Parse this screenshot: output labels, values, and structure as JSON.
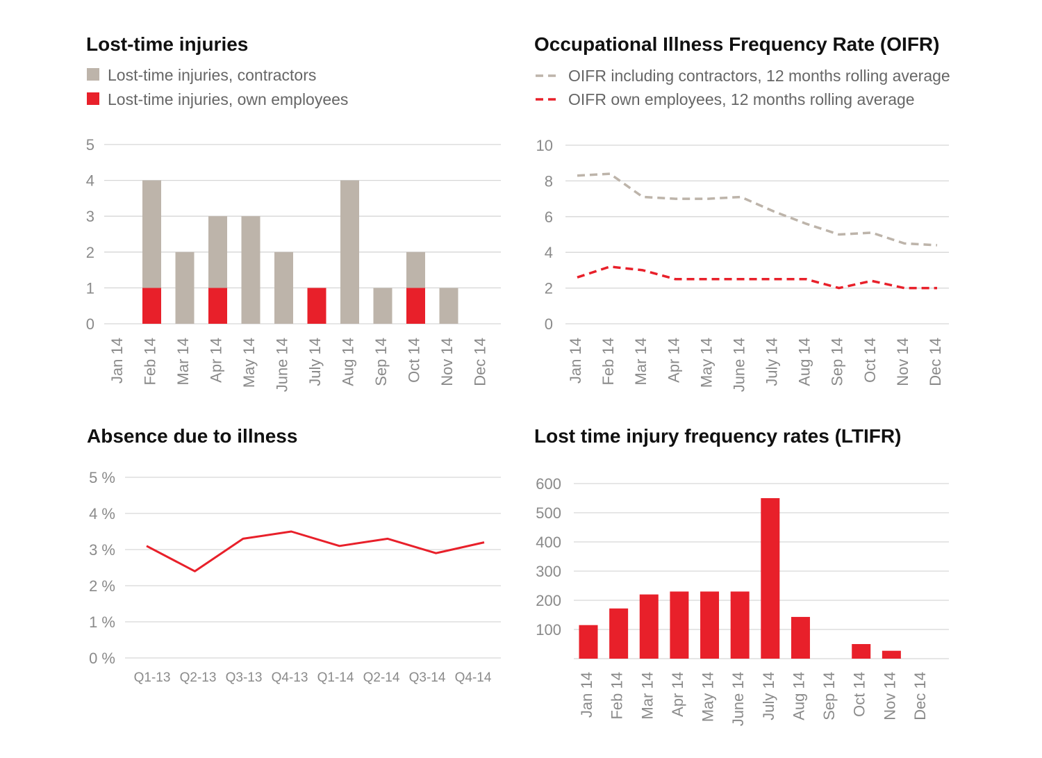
{
  "colors": {
    "contractors": "#bdb4aa",
    "own": "#e8202a",
    "grid": "#d6d6d6",
    "tick": "#8a8a8a"
  },
  "chart_data": [
    {
      "id": "lti",
      "type": "bar",
      "stacked": true,
      "title": "Lost-time injuries",
      "legend": [
        "Lost-time injuries, contractors",
        "Lost-time injuries, own employees"
      ],
      "categories": [
        "Jan 14",
        "Feb 14",
        "Mar 14",
        "Apr 14",
        "May 14",
        "June 14",
        "July 14",
        "Aug 14",
        "Sep 14",
        "Oct 14",
        "Nov 14",
        "Dec 14"
      ],
      "series": [
        {
          "name": "Lost-time injuries, own employees",
          "values": [
            0,
            1,
            0,
            1,
            0,
            0,
            1,
            0,
            0,
            1,
            0,
            0
          ]
        },
        {
          "name": "Lost-time injuries, contractors",
          "values": [
            0,
            3,
            2,
            2,
            3,
            2,
            0,
            4,
            1,
            1,
            1,
            0
          ]
        }
      ],
      "ylim": [
        0,
        5
      ],
      "yticks": [
        "0",
        "1",
        "2",
        "3",
        "4",
        "5"
      ]
    },
    {
      "id": "oifr",
      "type": "line",
      "title": "Occupational Illness Frequency Rate (OIFR)",
      "legend": [
        "OIFR including contractors, 12 months rolling average",
        "OIFR own employees, 12 months rolling average"
      ],
      "categories": [
        "Jan 14",
        "Feb 14",
        "Mar 14",
        "Apr 14",
        "May 14",
        "June 14",
        "July 14",
        "Aug 14",
        "Sep 14",
        "Oct 14",
        "Nov 14",
        "Dec 14"
      ],
      "series": [
        {
          "name": "OIFR including contractors, 12 months rolling average",
          "values": [
            8.3,
            8.4,
            7.1,
            7.0,
            7.0,
            7.1,
            6.3,
            5.6,
            5.0,
            5.1,
            4.5,
            4.4
          ]
        },
        {
          "name": "OIFR own employees, 12 months rolling average",
          "values": [
            2.6,
            3.2,
            3.0,
            2.5,
            2.5,
            2.5,
            2.5,
            2.5,
            2.0,
            2.4,
            2.0,
            2.0
          ]
        }
      ],
      "ylim": [
        0,
        10
      ],
      "yticks": [
        "0",
        "2",
        "4",
        "6",
        "8",
        "10"
      ]
    },
    {
      "id": "absence",
      "type": "line",
      "title": "Absence due to illness",
      "categories": [
        "Q1-13",
        "Q2-13",
        "Q3-13",
        "Q4-13",
        "Q1-14",
        "Q2-14",
        "Q3-14",
        "Q4-14"
      ],
      "series": [
        {
          "name": "Absence due to illness",
          "values": [
            3.1,
            2.4,
            3.3,
            3.5,
            3.1,
            3.3,
            2.9,
            3.2
          ]
        }
      ],
      "ylim": [
        0,
        5
      ],
      "yticks": [
        "0 %",
        "1 %",
        "2 %",
        "3 %",
        "4 %",
        "5 %"
      ]
    },
    {
      "id": "ltifr",
      "type": "bar",
      "title": "Lost time injury frequency rates (LTIFR)",
      "categories": [
        "Jan 14",
        "Feb 14",
        "Mar 14",
        "Apr 14",
        "May 14",
        "June 14",
        "July 14",
        "Aug 14",
        "Sep 14",
        "Oct 14",
        "Nov 14",
        "Dec 14"
      ],
      "series": [
        {
          "name": "LTIFR",
          "values": [
            115,
            172,
            220,
            230,
            230,
            230,
            550,
            143,
            0,
            50,
            27,
            0
          ]
        }
      ],
      "ylim": [
        0,
        600
      ],
      "yticks": [
        "100",
        "200",
        "300",
        "400",
        "500",
        "600"
      ]
    }
  ]
}
